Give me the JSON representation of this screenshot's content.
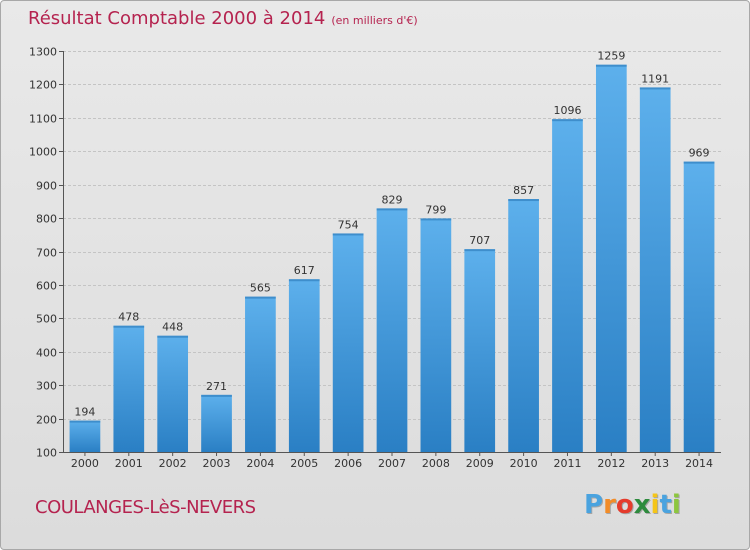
{
  "chart_data": {
    "type": "bar",
    "title": "Résultat Comptable 2000 à 2014",
    "subtitle": "(en milliers d'€)",
    "categories": [
      "2000",
      "2001",
      "2002",
      "2003",
      "2004",
      "2005",
      "2006",
      "2007",
      "2008",
      "2009",
      "2010",
      "2011",
      "2012",
      "2013",
      "2014"
    ],
    "values": [
      194,
      478,
      448,
      271,
      565,
      617,
      754,
      829,
      799,
      707,
      857,
      1096,
      1259,
      1191,
      969
    ],
    "ylim": [
      100,
      1300
    ],
    "yticks": [
      100,
      200,
      300,
      400,
      500,
      600,
      700,
      800,
      900,
      1000,
      1100,
      1200,
      1300
    ],
    "grid": true,
    "bar_color": "#3a8fd6"
  },
  "footer": {
    "commune": "COULANGES-LèS-NEVERS",
    "logo_letters": [
      {
        "ch": "P",
        "color": "#4aa3df"
      },
      {
        "ch": "r",
        "color": "#f28c28"
      },
      {
        "ch": "o",
        "color": "#e53b2c"
      },
      {
        "ch": "x",
        "color": "#2e8b3e"
      },
      {
        "ch": "i",
        "color": "#f5c518"
      },
      {
        "ch": "t",
        "color": "#4aa3df"
      },
      {
        "ch": "i",
        "color": "#8dc63f"
      }
    ]
  }
}
